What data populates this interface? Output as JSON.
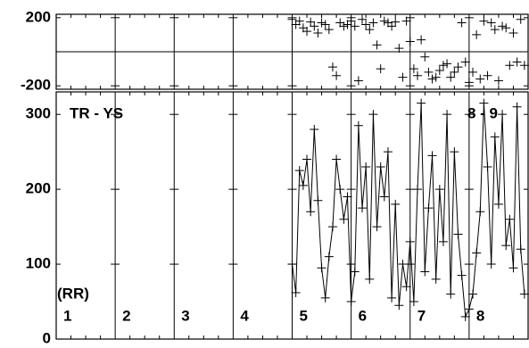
{
  "chart_data": [
    {
      "type": "scatter",
      "xlim": [
        0,
        8
      ],
      "xticks": [
        0,
        1,
        2,
        3,
        4,
        5,
        6,
        7,
        8
      ],
      "ylim": [
        -220,
        220
      ],
      "yticks": [
        -200,
        200
      ],
      "reference_line": 0,
      "marker": "+",
      "color": "#000000",
      "x": [
        4,
        4.0625,
        4.125,
        4.1875,
        4.25,
        4.3125,
        4.375,
        4.4375,
        4.5,
        4.5625,
        4.625,
        4.6875,
        4.75,
        4.8125,
        4.875,
        4.9375,
        5,
        5.0625,
        5.125,
        5.1875,
        5.25,
        5.3125,
        5.375,
        5.4375,
        5.5,
        5.5625,
        5.625,
        5.6875,
        5.75,
        5.8125,
        5.875,
        5.9375,
        6,
        6.0625,
        6.125,
        6.1875,
        6.25,
        6.3125,
        6.375,
        6.4375,
        6.5,
        6.5625,
        6.625,
        6.6875,
        6.75,
        6.8125,
        6.875,
        6.9375,
        7,
        7.0625,
        7.125,
        7.1875,
        7.25,
        7.3125,
        7.375,
        7.4375,
        7.5,
        7.5625,
        7.625,
        7.6875,
        7.75,
        7.8125,
        7.875,
        7.9375
      ],
      "values": [
        190,
        160,
        180,
        140,
        120,
        175,
        150,
        110,
        170,
        160,
        130,
        -90,
        -140,
        170,
        150,
        160,
        180,
        150,
        -170,
        190,
        160,
        130,
        170,
        40,
        -100,
        180,
        170,
        150,
        175,
        20,
        -150,
        180,
        60,
        -100,
        -140,
        70,
        -30,
        -120,
        -160,
        -150,
        -110,
        -80,
        -70,
        -150,
        -120,
        -90,
        170,
        -60,
        -180,
        -120,
        100,
        -160,
        180,
        -140,
        170,
        130,
        -170,
        150,
        140,
        -80,
        110,
        -60,
        190,
        -80
      ]
    },
    {
      "type": "line",
      "xlim": [
        0,
        8
      ],
      "xticks": [
        0,
        1,
        2,
        3,
        4,
        5,
        6,
        7,
        8
      ],
      "ylim": [
        0,
        330
      ],
      "yticks": [
        0,
        100,
        200,
        300
      ],
      "marker": "+",
      "color": "#000000",
      "annotations": [
        "TR - YS",
        "8 - 9",
        "(RR)"
      ],
      "section_labels": [
        "1",
        "2",
        "3",
        "4",
        "5",
        "6",
        "7",
        "8"
      ],
      "x": [
        4,
        4.0625,
        4.125,
        4.1875,
        4.25,
        4.3125,
        4.375,
        4.4375,
        4.5,
        4.5625,
        4.625,
        4.6875,
        4.75,
        4.8125,
        4.875,
        4.9375,
        5,
        5.0625,
        5.125,
        5.1875,
        5.25,
        5.3125,
        5.375,
        5.4375,
        5.5,
        5.5625,
        5.625,
        5.6875,
        5.75,
        5.8125,
        5.875,
        5.9375,
        6,
        6.0625,
        6.125,
        6.1875,
        6.25,
        6.3125,
        6.375,
        6.4375,
        6.5,
        6.5625,
        6.625,
        6.6875,
        6.75,
        6.8125,
        6.875,
        6.9375,
        7,
        7.0625,
        7.125,
        7.1875,
        7.25,
        7.3125,
        7.375,
        7.4375,
        7.5,
        7.5625,
        7.625,
        7.6875,
        7.75,
        7.8125,
        7.875,
        7.9375
      ],
      "values": [
        100,
        62,
        225,
        205,
        240,
        170,
        280,
        185,
        95,
        55,
        110,
        150,
        240,
        200,
        160,
        190,
        50,
        90,
        285,
        175,
        230,
        80,
        300,
        150,
        230,
        190,
        250,
        55,
        180,
        45,
        100,
        70,
        130,
        50,
        200,
        315,
        90,
        175,
        245,
        80,
        200,
        130,
        300,
        60,
        250,
        140,
        85,
        30,
        40,
        60,
        115,
        170,
        315,
        230,
        100,
        270,
        180,
        300,
        125,
        160,
        95,
        310,
        120,
        60
      ]
    }
  ]
}
